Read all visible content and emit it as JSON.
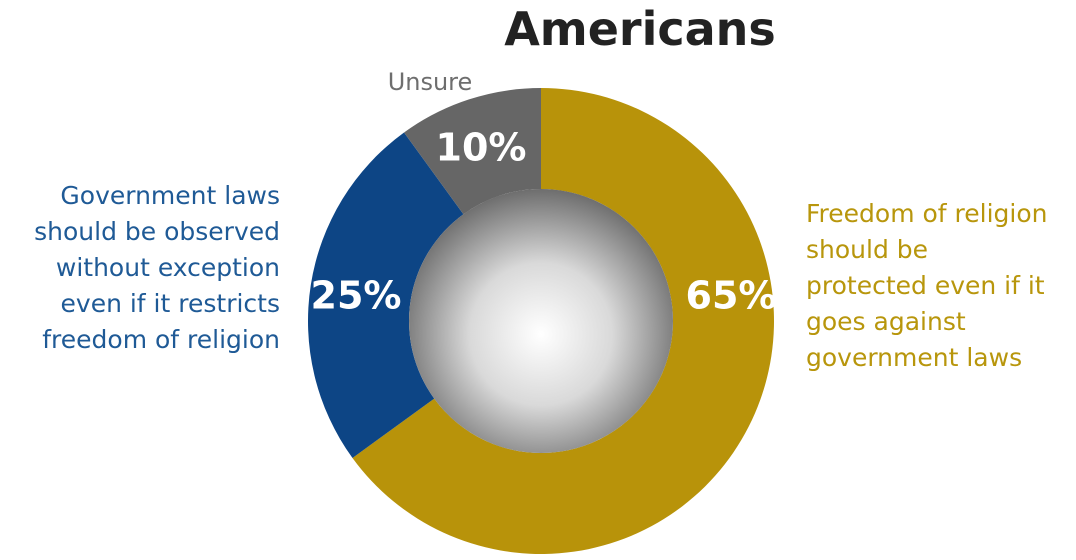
{
  "chart_data": {
    "type": "donut",
    "title": "Americans",
    "categories": [
      "Freedom of religion should be protected even if it goes against government laws",
      "Government laws should be observed without exception even if it restricts freedom of religion",
      "Unsure"
    ],
    "values": [
      65,
      25,
      10
    ],
    "value_labels": [
      "65%",
      "25%",
      "10%"
    ],
    "colors": [
      "#b8930a",
      "#0d4585",
      "#666666"
    ]
  }
}
